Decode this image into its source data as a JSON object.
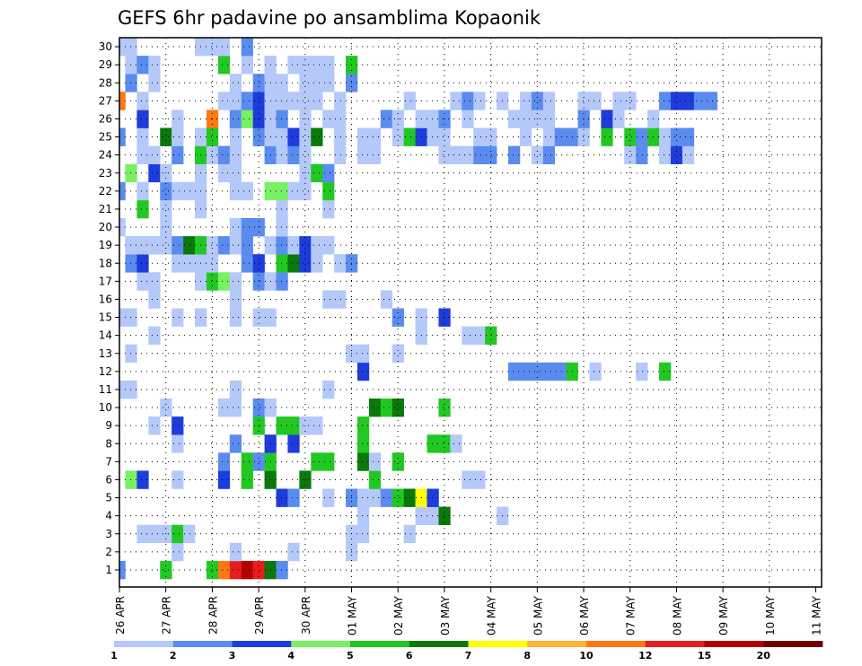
{
  "chart_data": {
    "type": "heatmap",
    "title": "GEFS 6hr padavine po ansamblima Kopaonik",
    "xlabel": "",
    "ylabel": "",
    "x_tick_labels": [
      "26 APR",
      "27 APR",
      "28 APR",
      "29 APR",
      "30 APR",
      "01 MAY",
      "02 MAY",
      "03 MAY",
      "04 MAY",
      "05 MAY",
      "06 MAY",
      "07 MAY",
      "08 MAY",
      "09 MAY",
      "10 MAY",
      "11 MAY"
    ],
    "y_tick_labels": [
      "1",
      "2",
      "3",
      "4",
      "5",
      "6",
      "7",
      "8",
      "9",
      "10",
      "11",
      "12",
      "13",
      "14",
      "15",
      "16",
      "17",
      "18",
      "19",
      "20",
      "21",
      "22",
      "23",
      "24",
      "25",
      "26",
      "27",
      "28",
      "29",
      "30"
    ],
    "x_steps": 61,
    "steps_per_day": 4,
    "members": 30,
    "grid": true,
    "legend": {
      "position": "bottom",
      "levels": [
        "1",
        "2",
        "3",
        "4",
        "5",
        "6",
        "7",
        "8",
        "10",
        "12",
        "15",
        "20"
      ],
      "colors": [
        "#b4c8fa",
        "#5a8cf0",
        "#1e3cdc",
        "#78f064",
        "#22c822",
        "#0a780a",
        "#ffff00",
        "#ffb432",
        "#ff7814",
        "#e61e1e",
        "#b40000",
        "#6e0000"
      ]
    },
    "cells": [
      [
        1,
        0,
        2
      ],
      [
        1,
        4,
        5
      ],
      [
        1,
        8,
        5
      ],
      [
        1,
        9,
        9
      ],
      [
        1,
        10,
        10
      ],
      [
        1,
        11,
        11
      ],
      [
        1,
        12,
        10
      ],
      [
        1,
        13,
        6
      ],
      [
        1,
        14,
        2
      ],
      [
        2,
        5,
        1
      ],
      [
        2,
        10,
        1
      ],
      [
        2,
        15,
        1
      ],
      [
        2,
        20,
        1
      ],
      [
        3,
        2,
        1
      ],
      [
        3,
        3,
        1
      ],
      [
        3,
        4,
        1
      ],
      [
        3,
        5,
        5
      ],
      [
        3,
        6,
        1
      ],
      [
        3,
        20,
        1
      ],
      [
        3,
        21,
        1
      ],
      [
        3,
        25,
        1
      ],
      [
        4,
        21,
        1
      ],
      [
        4,
        26,
        1
      ],
      [
        4,
        27,
        1
      ],
      [
        4,
        28,
        6
      ],
      [
        4,
        33,
        1
      ],
      [
        5,
        14,
        3
      ],
      [
        5,
        15,
        2
      ],
      [
        5,
        18,
        1
      ],
      [
        5,
        20,
        2
      ],
      [
        5,
        21,
        1
      ],
      [
        5,
        22,
        1
      ],
      [
        5,
        23,
        2
      ],
      [
        5,
        24,
        5
      ],
      [
        5,
        25,
        6
      ],
      [
        5,
        26,
        7
      ],
      [
        5,
        27,
        3
      ],
      [
        6,
        1,
        4
      ],
      [
        6,
        2,
        3
      ],
      [
        6,
        5,
        1
      ],
      [
        6,
        9,
        3
      ],
      [
        6,
        11,
        5
      ],
      [
        6,
        13,
        6
      ],
      [
        6,
        16,
        6
      ],
      [
        6,
        22,
        5
      ],
      [
        6,
        30,
        1
      ],
      [
        6,
        31,
        1
      ],
      [
        7,
        9,
        2
      ],
      [
        7,
        11,
        5
      ],
      [
        7,
        12,
        2
      ],
      [
        7,
        13,
        5
      ],
      [
        7,
        17,
        5
      ],
      [
        7,
        18,
        5
      ],
      [
        7,
        21,
        6
      ],
      [
        7,
        22,
        1
      ],
      [
        7,
        24,
        5
      ],
      [
        8,
        5,
        1
      ],
      [
        8,
        10,
        2
      ],
      [
        8,
        13,
        3
      ],
      [
        8,
        15,
        3
      ],
      [
        8,
        21,
        5
      ],
      [
        8,
        27,
        5
      ],
      [
        8,
        28,
        5
      ],
      [
        8,
        29,
        1
      ],
      [
        9,
        3,
        1
      ],
      [
        9,
        5,
        3
      ],
      [
        9,
        12,
        5
      ],
      [
        9,
        14,
        5
      ],
      [
        9,
        15,
        5
      ],
      [
        9,
        16,
        1
      ],
      [
        9,
        17,
        1
      ],
      [
        9,
        21,
        5
      ],
      [
        10,
        4,
        1
      ],
      [
        10,
        9,
        1
      ],
      [
        10,
        10,
        1
      ],
      [
        10,
        12,
        2
      ],
      [
        10,
        13,
        1
      ],
      [
        10,
        22,
        6
      ],
      [
        10,
        23,
        5
      ],
      [
        10,
        24,
        6
      ],
      [
        10,
        28,
        5
      ],
      [
        11,
        0,
        1
      ],
      [
        11,
        1,
        1
      ],
      [
        11,
        10,
        1
      ],
      [
        11,
        18,
        1
      ],
      [
        12,
        21,
        3
      ],
      [
        12,
        34,
        2
      ],
      [
        12,
        35,
        2
      ],
      [
        12,
        36,
        2
      ],
      [
        12,
        37,
        2
      ],
      [
        12,
        38,
        2
      ],
      [
        12,
        39,
        5
      ],
      [
        12,
        41,
        1
      ],
      [
        12,
        45,
        1
      ],
      [
        12,
        47,
        5
      ],
      [
        13,
        1,
        1
      ],
      [
        13,
        20,
        1
      ],
      [
        13,
        21,
        1
      ],
      [
        13,
        24,
        1
      ],
      [
        14,
        3,
        1
      ],
      [
        14,
        26,
        1
      ],
      [
        14,
        30,
        1
      ],
      [
        14,
        31,
        1
      ],
      [
        14,
        32,
        5
      ],
      [
        15,
        0,
        1
      ],
      [
        15,
        1,
        1
      ],
      [
        15,
        5,
        1
      ],
      [
        15,
        7,
        1
      ],
      [
        15,
        10,
        1
      ],
      [
        15,
        12,
        1
      ],
      [
        15,
        13,
        1
      ],
      [
        15,
        24,
        2
      ],
      [
        15,
        26,
        1
      ],
      [
        15,
        28,
        3
      ],
      [
        16,
        3,
        1
      ],
      [
        16,
        10,
        1
      ],
      [
        16,
        18,
        1
      ],
      [
        16,
        19,
        1
      ],
      [
        16,
        23,
        1
      ],
      [
        17,
        2,
        1
      ],
      [
        17,
        3,
        1
      ],
      [
        17,
        7,
        1
      ],
      [
        17,
        8,
        5
      ],
      [
        17,
        9,
        4
      ],
      [
        17,
        10,
        1
      ],
      [
        17,
        12,
        2
      ],
      [
        17,
        13,
        1
      ],
      [
        17,
        14,
        2
      ],
      [
        18,
        1,
        2
      ],
      [
        18,
        2,
        3
      ],
      [
        18,
        5,
        1
      ],
      [
        18,
        6,
        1
      ],
      [
        18,
        7,
        1
      ],
      [
        18,
        8,
        1
      ],
      [
        18,
        11,
        2
      ],
      [
        18,
        12,
        3
      ],
      [
        18,
        14,
        5
      ],
      [
        18,
        15,
        6
      ],
      [
        18,
        16,
        3
      ],
      [
        18,
        17,
        1
      ],
      [
        18,
        19,
        1
      ],
      [
        18,
        20,
        2
      ],
      [
        19,
        1,
        1
      ],
      [
        19,
        2,
        1
      ],
      [
        19,
        3,
        1
      ],
      [
        19,
        4,
        1
      ],
      [
        19,
        5,
        2
      ],
      [
        19,
        6,
        6
      ],
      [
        19,
        7,
        5
      ],
      [
        19,
        8,
        1
      ],
      [
        19,
        9,
        2
      ],
      [
        19,
        10,
        1
      ],
      [
        19,
        11,
        2
      ],
      [
        19,
        13,
        1
      ],
      [
        19,
        14,
        2
      ],
      [
        19,
        15,
        1
      ],
      [
        19,
        16,
        3
      ],
      [
        19,
        17,
        1
      ],
      [
        19,
        18,
        1
      ],
      [
        20,
        0,
        1
      ],
      [
        20,
        4,
        1
      ],
      [
        20,
        10,
        1
      ],
      [
        20,
        11,
        2
      ],
      [
        20,
        12,
        2
      ],
      [
        20,
        14,
        1
      ],
      [
        21,
        2,
        5
      ],
      [
        21,
        4,
        1
      ],
      [
        21,
        7,
        1
      ],
      [
        21,
        14,
        1
      ],
      [
        21,
        18,
        1
      ],
      [
        22,
        0,
        2
      ],
      [
        22,
        2,
        1
      ],
      [
        22,
        4,
        2
      ],
      [
        22,
        5,
        1
      ],
      [
        22,
        6,
        1
      ],
      [
        22,
        7,
        1
      ],
      [
        22,
        10,
        1
      ],
      [
        22,
        11,
        1
      ],
      [
        22,
        13,
        4
      ],
      [
        22,
        14,
        4
      ],
      [
        22,
        15,
        1
      ],
      [
        22,
        16,
        1
      ],
      [
        22,
        18,
        5
      ],
      [
        23,
        1,
        4
      ],
      [
        23,
        3,
        3
      ],
      [
        23,
        4,
        1
      ],
      [
        23,
        7,
        1
      ],
      [
        23,
        9,
        1
      ],
      [
        23,
        10,
        1
      ],
      [
        23,
        16,
        1
      ],
      [
        23,
        17,
        5
      ],
      [
        23,
        18,
        2
      ],
      [
        24,
        2,
        1
      ],
      [
        24,
        3,
        1
      ],
      [
        24,
        5,
        2
      ],
      [
        24,
        7,
        5
      ],
      [
        24,
        8,
        1
      ],
      [
        24,
        9,
        2
      ],
      [
        24,
        10,
        1
      ],
      [
        24,
        13,
        2
      ],
      [
        24,
        14,
        1
      ],
      [
        24,
        15,
        2
      ],
      [
        24,
        16,
        1
      ],
      [
        24,
        19,
        1
      ],
      [
        24,
        21,
        1
      ],
      [
        24,
        22,
        1
      ],
      [
        24,
        28,
        1
      ],
      [
        24,
        29,
        1
      ],
      [
        24,
        30,
        1
      ],
      [
        24,
        31,
        2
      ],
      [
        24,
        32,
        2
      ],
      [
        24,
        34,
        2
      ],
      [
        24,
        36,
        1
      ],
      [
        24,
        37,
        2
      ],
      [
        24,
        44,
        1
      ],
      [
        24,
        45,
        2
      ],
      [
        24,
        47,
        1
      ],
      [
        24,
        48,
        3
      ],
      [
        24,
        49,
        1
      ],
      [
        25,
        0,
        2
      ],
      [
        25,
        2,
        1
      ],
      [
        25,
        4,
        6
      ],
      [
        25,
        5,
        1
      ],
      [
        25,
        7,
        1
      ],
      [
        25,
        8,
        5
      ],
      [
        25,
        10,
        1
      ],
      [
        25,
        12,
        2
      ],
      [
        25,
        13,
        1
      ],
      [
        25,
        14,
        1
      ],
      [
        25,
        15,
        3
      ],
      [
        25,
        16,
        1
      ],
      [
        25,
        17,
        6
      ],
      [
        25,
        19,
        1
      ],
      [
        25,
        21,
        1
      ],
      [
        25,
        22,
        1
      ],
      [
        25,
        24,
        1
      ],
      [
        25,
        25,
        5
      ],
      [
        25,
        26,
        3
      ],
      [
        25,
        27,
        1
      ],
      [
        25,
        28,
        1
      ],
      [
        25,
        31,
        1
      ],
      [
        25,
        32,
        1
      ],
      [
        25,
        35,
        1
      ],
      [
        25,
        37,
        1
      ],
      [
        25,
        38,
        2
      ],
      [
        25,
        39,
        2
      ],
      [
        25,
        40,
        1
      ],
      [
        25,
        42,
        5
      ],
      [
        25,
        44,
        5
      ],
      [
        25,
        45,
        2
      ],
      [
        25,
        46,
        5
      ],
      [
        25,
        47,
        1
      ],
      [
        25,
        48,
        2
      ],
      [
        25,
        49,
        2
      ],
      [
        26,
        2,
        3
      ],
      [
        26,
        5,
        1
      ],
      [
        26,
        8,
        9
      ],
      [
        26,
        10,
        2
      ],
      [
        26,
        11,
        4
      ],
      [
        26,
        12,
        3
      ],
      [
        26,
        13,
        1
      ],
      [
        26,
        14,
        2
      ],
      [
        26,
        16,
        1
      ],
      [
        26,
        18,
        1
      ],
      [
        26,
        19,
        1
      ],
      [
        26,
        23,
        2
      ],
      [
        26,
        24,
        1
      ],
      [
        26,
        26,
        1
      ],
      [
        26,
        27,
        1
      ],
      [
        26,
        28,
        2
      ],
      [
        26,
        30,
        1
      ],
      [
        26,
        34,
        1
      ],
      [
        26,
        35,
        1
      ],
      [
        26,
        36,
        1
      ],
      [
        26,
        37,
        1
      ],
      [
        26,
        40,
        2
      ],
      [
        26,
        42,
        3
      ],
      [
        26,
        43,
        1
      ],
      [
        26,
        46,
        1
      ],
      [
        27,
        0,
        9
      ],
      [
        27,
        2,
        1
      ],
      [
        27,
        9,
        1
      ],
      [
        27,
        10,
        1
      ],
      [
        27,
        11,
        2
      ],
      [
        27,
        12,
        3
      ],
      [
        27,
        13,
        1
      ],
      [
        27,
        14,
        1
      ],
      [
        27,
        15,
        1
      ],
      [
        27,
        16,
        1
      ],
      [
        27,
        17,
        1
      ],
      [
        27,
        19,
        1
      ],
      [
        27,
        25,
        1
      ],
      [
        27,
        29,
        1
      ],
      [
        27,
        30,
        2
      ],
      [
        27,
        31,
        1
      ],
      [
        27,
        33,
        1
      ],
      [
        27,
        35,
        1
      ],
      [
        27,
        36,
        2
      ],
      [
        27,
        37,
        1
      ],
      [
        27,
        40,
        1
      ],
      [
        27,
        41,
        1
      ],
      [
        27,
        43,
        1
      ],
      [
        27,
        44,
        1
      ],
      [
        27,
        47,
        2
      ],
      [
        27,
        48,
        3
      ],
      [
        27,
        49,
        3
      ],
      [
        27,
        50,
        2
      ],
      [
        27,
        51,
        2
      ],
      [
        28,
        1,
        2
      ],
      [
        28,
        3,
        1
      ],
      [
        28,
        10,
        1
      ],
      [
        28,
        12,
        2
      ],
      [
        28,
        13,
        1
      ],
      [
        28,
        14,
        1
      ],
      [
        28,
        16,
        1
      ],
      [
        28,
        17,
        1
      ],
      [
        28,
        18,
        1
      ],
      [
        28,
        20,
        2
      ],
      [
        29,
        1,
        1
      ],
      [
        29,
        2,
        2
      ],
      [
        29,
        3,
        1
      ],
      [
        29,
        9,
        5
      ],
      [
        29,
        11,
        1
      ],
      [
        29,
        13,
        1
      ],
      [
        29,
        15,
        1
      ],
      [
        29,
        16,
        1
      ],
      [
        29,
        17,
        1
      ],
      [
        29,
        18,
        1
      ],
      [
        29,
        20,
        5
      ],
      [
        30,
        0,
        1
      ],
      [
        30,
        1,
        1
      ],
      [
        30,
        7,
        1
      ],
      [
        30,
        8,
        1
      ],
      [
        30,
        9,
        1
      ],
      [
        30,
        11,
        2
      ]
    ],
    "cells_note_columns": "member, column index within the day window listed below, color level (1-12)",
    "cell_windows": [
      {
        "member_range": [
          1,
          30
        ],
        "start_step": 0
      }
    ]
  }
}
